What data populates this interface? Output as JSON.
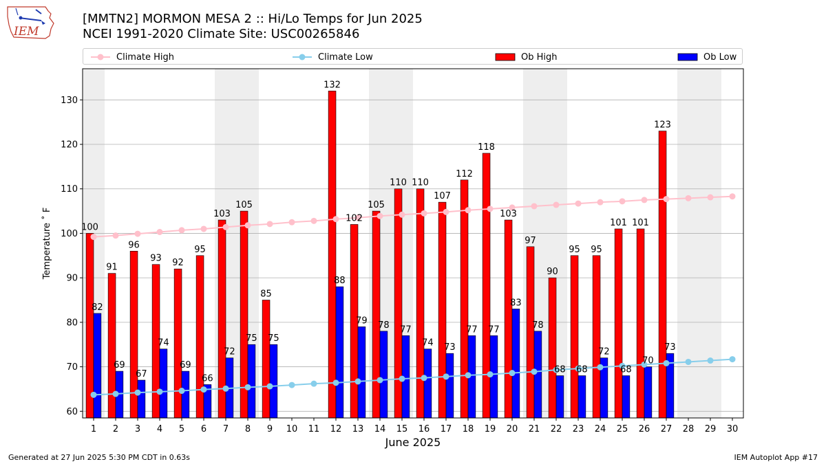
{
  "header": {
    "title_line1": "[MMTN2] MORMON MESA 2 :: Hi/Lo Temps for Jun 2025",
    "title_line2": "NCEI 1991-2020 Climate Site: USC00265846",
    "logo_text": "IEM"
  },
  "footer": {
    "left": "Generated at 27 Jun 2025 5:30 PM CDT in 0.63s",
    "right": "IEM Autoplot App #17"
  },
  "colors": {
    "ob_high": "#ff0000",
    "ob_low": "#0000ff",
    "climate_high": "#ffc0cb",
    "climate_low": "#87ceeb",
    "weekend_shade": "#eeeeee",
    "grid": "#b0b0b0"
  },
  "chart_data": {
    "type": "bar",
    "xlabel": "June 2025",
    "ylabel": "Temperature ˚ F",
    "ylim": [
      58.5,
      137
    ],
    "yticks": [
      60,
      70,
      80,
      90,
      100,
      110,
      120,
      130
    ],
    "grid": "horizontal",
    "legend_position": "top",
    "weekend_days": [
      1,
      7,
      8,
      14,
      15,
      21,
      22,
      28,
      29
    ],
    "categories": [
      "1",
      "2",
      "3",
      "4",
      "5",
      "6",
      "7",
      "8",
      "9",
      "10",
      "11",
      "12",
      "13",
      "14",
      "15",
      "16",
      "17",
      "18",
      "19",
      "20",
      "21",
      "22",
      "23",
      "24",
      "25",
      "26",
      "27",
      "28",
      "29",
      "30"
    ],
    "series": [
      {
        "name": "Ob High",
        "kind": "bar",
        "values": [
          100,
          91,
          96,
          93,
          92,
          95,
          103,
          105,
          85,
          null,
          null,
          132,
          102,
          105,
          110,
          110,
          107,
          112,
          118,
          103,
          97,
          90,
          95,
          95,
          101,
          101,
          123,
          null,
          null,
          null
        ]
      },
      {
        "name": "Ob Low",
        "kind": "bar",
        "values": [
          82,
          69,
          67,
          74,
          69,
          66,
          72,
          75,
          75,
          null,
          null,
          88,
          79,
          78,
          77,
          74,
          73,
          77,
          77,
          83,
          78,
          68,
          68,
          72,
          68,
          70,
          73,
          null,
          null,
          null
        ]
      },
      {
        "name": "Climate High",
        "kind": "line",
        "values": [
          99.2,
          99.5,
          99.9,
          100.3,
          100.7,
          101.0,
          101.4,
          101.8,
          102.1,
          102.5,
          102.8,
          103.2,
          103.5,
          103.9,
          104.2,
          104.5,
          104.8,
          105.2,
          105.5,
          105.8,
          106.1,
          106.4,
          106.7,
          107.0,
          107.2,
          107.5,
          107.7,
          107.9,
          108.1,
          108.3
        ]
      },
      {
        "name": "Climate Low",
        "kind": "line",
        "values": [
          63.7,
          63.9,
          64.2,
          64.4,
          64.6,
          64.9,
          65.1,
          65.4,
          65.6,
          65.9,
          66.2,
          66.4,
          66.7,
          67.0,
          67.3,
          67.5,
          67.8,
          68.1,
          68.3,
          68.6,
          68.9,
          69.3,
          69.6,
          69.9,
          70.2,
          70.5,
          70.8,
          71.1,
          71.4,
          71.7
        ]
      }
    ]
  }
}
